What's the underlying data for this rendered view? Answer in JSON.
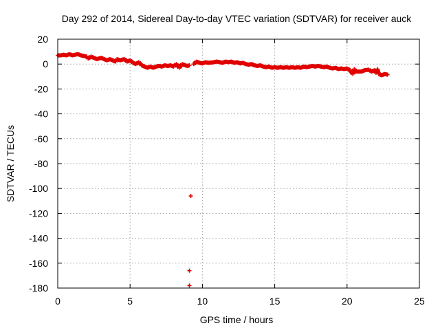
{
  "chart_data": {
    "type": "scatter",
    "title": "Day 292 of 2014, Sidereal Day-to-day VTEC variation (SDTVAR) for receiver auck",
    "xlabel": "GPS time / hours",
    "ylabel": "SDTVAR / TECUs",
    "xlim": [
      0,
      25
    ],
    "ylim": [
      -180,
      20
    ],
    "xticks": [
      0,
      5,
      10,
      15,
      20,
      25
    ],
    "yticks": [
      20,
      0,
      -20,
      -40,
      -60,
      -80,
      -100,
      -120,
      -140,
      -160,
      -180
    ],
    "grid": true,
    "marker": "plus",
    "color": "#e00000",
    "series": [
      {
        "name": "SDTVAR",
        "points": [
          [
            0.0,
            7
          ],
          [
            0.2,
            7
          ],
          [
            0.4,
            7.5
          ],
          [
            0.6,
            7
          ],
          [
            0.8,
            8
          ],
          [
            1.0,
            7
          ],
          [
            1.2,
            7.5
          ],
          [
            1.4,
            8
          ],
          [
            1.6,
            7
          ],
          [
            1.8,
            6.5
          ],
          [
            2.0,
            6
          ],
          [
            2.1,
            4.5
          ],
          [
            2.3,
            6
          ],
          [
            2.5,
            5
          ],
          [
            2.7,
            4
          ],
          [
            3.0,
            5
          ],
          [
            3.2,
            4
          ],
          [
            3.4,
            3
          ],
          [
            3.6,
            4
          ],
          [
            4.0,
            2
          ],
          [
            4.1,
            4
          ],
          [
            4.3,
            3
          ],
          [
            4.6,
            4
          ],
          [
            4.8,
            2
          ],
          [
            5.0,
            3
          ],
          [
            5.2,
            1
          ],
          [
            5.4,
            0
          ],
          [
            5.6,
            1.5
          ],
          [
            5.8,
            -1
          ],
          [
            6.0,
            -2
          ],
          [
            6.2,
            -3
          ],
          [
            6.4,
            -2
          ],
          [
            6.6,
            -3
          ],
          [
            6.8,
            -2
          ],
          [
            7.0,
            -1.5
          ],
          [
            7.2,
            -2
          ],
          [
            7.4,
            -1
          ],
          [
            7.6,
            -1.5
          ],
          [
            7.8,
            -1
          ],
          [
            8.0,
            -2
          ],
          [
            8.2,
            0
          ],
          [
            8.4,
            -3
          ],
          [
            8.6,
            0
          ],
          [
            8.8,
            -1
          ],
          [
            9.0,
            -1.5
          ],
          [
            9.1,
            -1
          ],
          [
            9.2,
            -106
          ],
          [
            9.1,
            -166
          ],
          [
            9.1,
            -178
          ],
          [
            9.4,
            0
          ],
          [
            9.6,
            2
          ],
          [
            9.8,
            1
          ],
          [
            10.0,
            0.5
          ],
          [
            10.2,
            1.5
          ],
          [
            10.4,
            1
          ],
          [
            10.6,
            1.2
          ],
          [
            10.8,
            1.5
          ],
          [
            11.0,
            2
          ],
          [
            11.2,
            1.5
          ],
          [
            11.4,
            1
          ],
          [
            11.6,
            2
          ],
          [
            11.8,
            1.5
          ],
          [
            12.0,
            2
          ],
          [
            12.2,
            1
          ],
          [
            12.4,
            1.5
          ],
          [
            12.6,
            0.5
          ],
          [
            12.8,
            1
          ],
          [
            13.0,
            0
          ],
          [
            13.2,
            -0.5
          ],
          [
            13.4,
            0
          ],
          [
            13.6,
            -1
          ],
          [
            13.8,
            -1.5
          ],
          [
            14.0,
            -1
          ],
          [
            14.2,
            -2
          ],
          [
            14.4,
            -2.5
          ],
          [
            14.6,
            -2
          ],
          [
            14.8,
            -3
          ],
          [
            15.0,
            -2.5
          ],
          [
            15.2,
            -3
          ],
          [
            15.4,
            -2.5
          ],
          [
            15.6,
            -3
          ],
          [
            15.8,
            -2.5
          ],
          [
            16.0,
            -3
          ],
          [
            16.2,
            -2.5
          ],
          [
            16.4,
            -3
          ],
          [
            16.6,
            -2.5
          ],
          [
            16.8,
            -3
          ],
          [
            17.0,
            -2
          ],
          [
            17.2,
            -2.5
          ],
          [
            17.4,
            -2
          ],
          [
            17.6,
            -1.5
          ],
          [
            17.8,
            -2
          ],
          [
            18.0,
            -1.5
          ],
          [
            18.2,
            -2
          ],
          [
            18.4,
            -2.5
          ],
          [
            18.6,
            -2
          ],
          [
            18.8,
            -3
          ],
          [
            19.0,
            -3.5
          ],
          [
            19.2,
            -3
          ],
          [
            19.4,
            -4
          ],
          [
            19.6,
            -3.5
          ],
          [
            19.8,
            -4
          ],
          [
            20.0,
            -3.5
          ],
          [
            20.2,
            -5
          ],
          [
            20.4,
            -8
          ],
          [
            20.5,
            -4
          ],
          [
            20.6,
            -6
          ],
          [
            21.0,
            -6
          ],
          [
            21.2,
            -5
          ],
          [
            21.5,
            -4.5
          ],
          [
            21.7,
            -6
          ],
          [
            21.9,
            -5
          ],
          [
            22.0,
            -7
          ],
          [
            22.1,
            -4
          ],
          [
            22.2,
            -8
          ],
          [
            22.4,
            -9
          ],
          [
            22.6,
            -8
          ],
          [
            22.8,
            -8.5
          ]
        ]
      }
    ]
  }
}
